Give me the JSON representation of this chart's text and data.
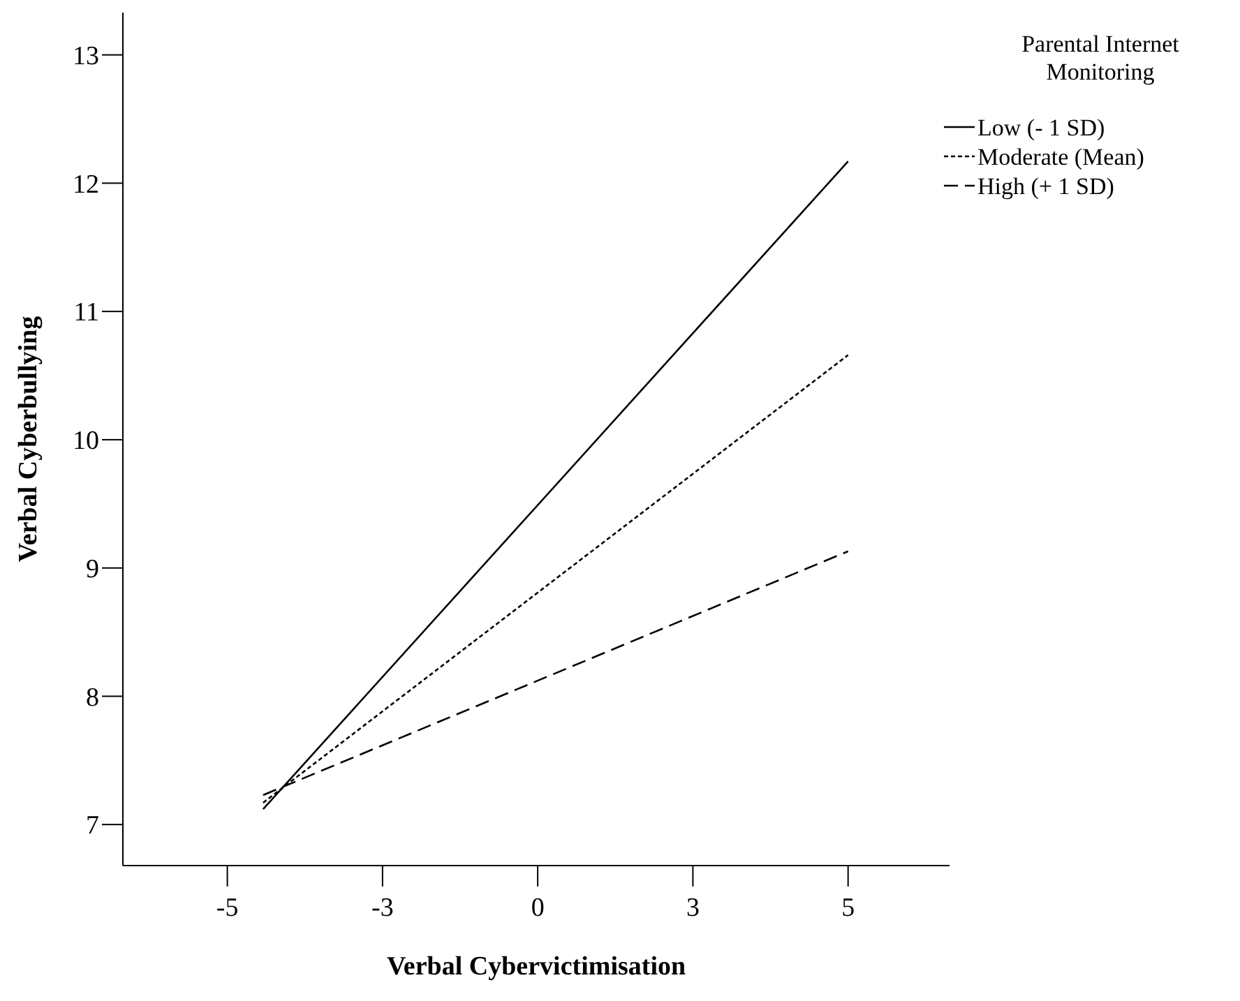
{
  "chart_data": {
    "type": "line",
    "xlabel": "Verbal Cybervictimisation",
    "ylabel": "Verbal Cyberbullying",
    "legend_title": "Parental Internet Monitoring",
    "legend": "top right",
    "x": [
      -4.6,
      5.2
    ],
    "xlim": [
      -6.95,
      6.9
    ],
    "xticks": [
      {
        "value": -5.2,
        "label": "-5"
      },
      {
        "value": -2.6,
        "label": "-3"
      },
      {
        "value": 0,
        "label": "0"
      },
      {
        "value": 2.6,
        "label": "3"
      },
      {
        "value": 5.2,
        "label": "5"
      }
    ],
    "ylim": [
      6.68,
      13.33
    ],
    "yticks": [
      7,
      8,
      9,
      10,
      11,
      12,
      13
    ],
    "series": [
      {
        "name": "Low (- 1 SD)",
        "color": "#000000",
        "line_style": "solid",
        "values": [
          7.12,
          12.17
        ]
      },
      {
        "name": "Moderate (Mean)",
        "color": "#000000",
        "line_style": "dotted",
        "values": [
          7.17,
          10.66
        ]
      },
      {
        "name": "High (+ 1 SD)",
        "color": "#000000",
        "line_style": "dashed",
        "values": [
          7.23,
          9.13
        ]
      }
    ]
  }
}
